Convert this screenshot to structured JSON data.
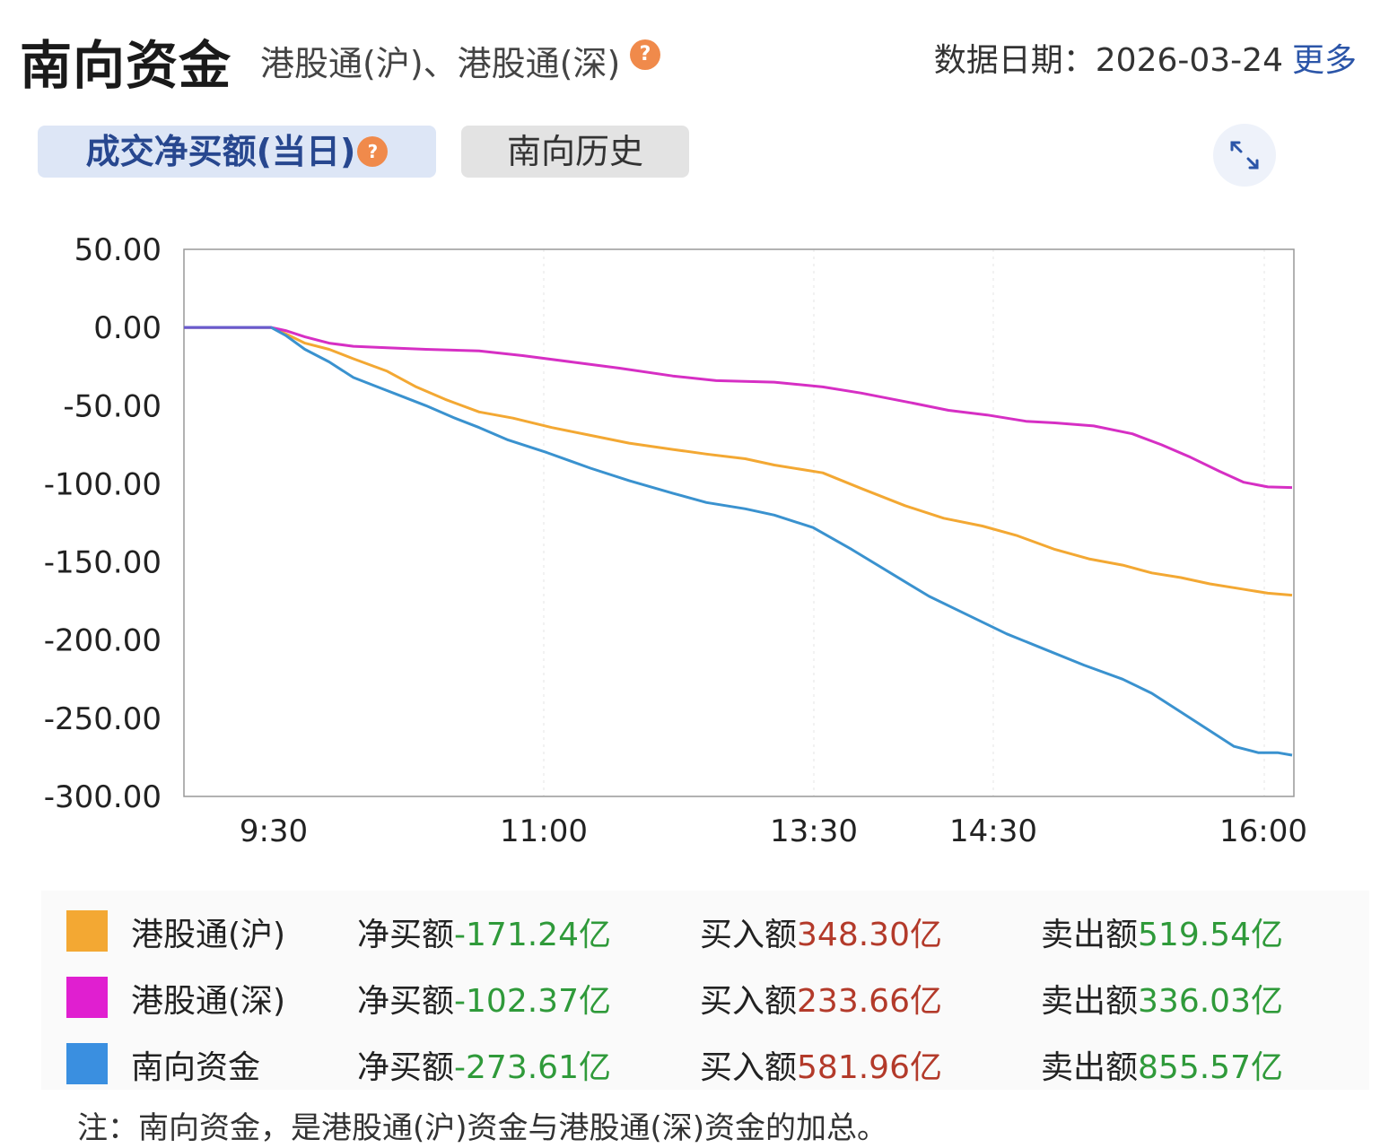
{
  "header": {
    "title": "南向资金",
    "subtitle": "港股通(沪)、港股通(深)",
    "help": "?",
    "date_label": "数据日期：2026-03-24",
    "more_label": "更多"
  },
  "tabs": [
    {
      "label": "成交净买额(当日)",
      "active": true
    },
    {
      "label": "南向历史",
      "active": false
    }
  ],
  "chart_data": {
    "type": "line",
    "ylim": [
      -300,
      50
    ],
    "yticks": [
      "50.00",
      "0.00",
      "-50.00",
      "-100.00",
      "-150.00",
      "-200.00",
      "-250.00",
      "-300.00"
    ],
    "xticks": [
      "9:30",
      "11:00",
      "13:30",
      "14:30",
      "16:00"
    ],
    "grid": true,
    "series": [
      {
        "name": "港股通(沪)",
        "color": "#f3a833",
        "points": [
          [
            0,
            0
          ],
          [
            0.5,
            0
          ],
          [
            0.9,
            0
          ],
          [
            1.05,
            -4
          ],
          [
            1.25,
            -10
          ],
          [
            1.5,
            -14
          ],
          [
            1.75,
            -20
          ],
          [
            2.1,
            -28
          ],
          [
            2.4,
            -38
          ],
          [
            2.7,
            -46
          ],
          [
            3.05,
            -54
          ],
          [
            3.4,
            -58
          ],
          [
            3.8,
            -64
          ],
          [
            4.2,
            -69
          ],
          [
            4.6,
            -74
          ],
          [
            5.05,
            -78
          ],
          [
            5.4,
            -81
          ],
          [
            5.8,
            -84
          ],
          [
            6.1,
            -88
          ],
          [
            6.6,
            -93
          ],
          [
            7.0,
            -103
          ],
          [
            7.45,
            -114
          ],
          [
            7.85,
            -122
          ],
          [
            8.25,
            -127
          ],
          [
            8.6,
            -133
          ],
          [
            9.0,
            -142
          ],
          [
            9.35,
            -148
          ],
          [
            9.7,
            -152
          ],
          [
            10.0,
            -157
          ],
          [
            10.3,
            -160
          ],
          [
            10.6,
            -164
          ],
          [
            10.9,
            -167
          ],
          [
            11.2,
            -170
          ],
          [
            11.45,
            -171.24
          ]
        ]
      },
      {
        "name": "港股通(深)",
        "color": "#d62fc4",
        "points": [
          [
            0,
            0
          ],
          [
            0.5,
            0
          ],
          [
            0.9,
            0
          ],
          [
            1.05,
            -2
          ],
          [
            1.25,
            -6
          ],
          [
            1.5,
            -10
          ],
          [
            1.75,
            -12
          ],
          [
            2.1,
            -13
          ],
          [
            2.5,
            -14
          ],
          [
            3.05,
            -15
          ],
          [
            3.5,
            -18
          ],
          [
            4.0,
            -22
          ],
          [
            4.5,
            -26
          ],
          [
            5.05,
            -31
          ],
          [
            5.5,
            -34
          ],
          [
            6.1,
            -35
          ],
          [
            6.6,
            -38
          ],
          [
            7.0,
            -42
          ],
          [
            7.5,
            -48
          ],
          [
            7.9,
            -53
          ],
          [
            8.3,
            -56
          ],
          [
            8.7,
            -60
          ],
          [
            9.0,
            -61
          ],
          [
            9.4,
            -63
          ],
          [
            9.8,
            -68
          ],
          [
            10.1,
            -75
          ],
          [
            10.4,
            -83
          ],
          [
            10.7,
            -92
          ],
          [
            10.95,
            -99
          ],
          [
            11.2,
            -102
          ],
          [
            11.45,
            -102.37
          ]
        ]
      },
      {
        "name": "南向资金",
        "color": "#3a92cf",
        "points": [
          [
            0,
            0
          ],
          [
            0.5,
            0
          ],
          [
            0.9,
            0
          ],
          [
            1.05,
            -5
          ],
          [
            1.25,
            -14
          ],
          [
            1.5,
            -22
          ],
          [
            1.75,
            -32
          ],
          [
            2.0,
            -38
          ],
          [
            2.25,
            -44
          ],
          [
            2.5,
            -50
          ],
          [
            2.8,
            -58
          ],
          [
            3.05,
            -64
          ],
          [
            3.35,
            -72
          ],
          [
            3.75,
            -80
          ],
          [
            4.2,
            -90
          ],
          [
            4.6,
            -98
          ],
          [
            5.05,
            -106
          ],
          [
            5.4,
            -112
          ],
          [
            5.8,
            -116
          ],
          [
            6.1,
            -120
          ],
          [
            6.5,
            -128
          ],
          [
            6.9,
            -142
          ],
          [
            7.3,
            -157
          ],
          [
            7.7,
            -172
          ],
          [
            8.1,
            -184
          ],
          [
            8.5,
            -196
          ],
          [
            8.9,
            -206
          ],
          [
            9.3,
            -216
          ],
          [
            9.7,
            -225
          ],
          [
            10.0,
            -234
          ],
          [
            10.3,
            -246
          ],
          [
            10.6,
            -258
          ],
          [
            10.85,
            -268
          ],
          [
            11.1,
            -272
          ],
          [
            11.3,
            -272
          ],
          [
            11.45,
            -273.61
          ]
        ]
      }
    ]
  },
  "legend": [
    {
      "name": "港股通(沪)",
      "color": "#f3a833",
      "net_label": "净买额",
      "net_value": "-171.24亿",
      "buy_label": "买入额",
      "buy_value": "348.30亿",
      "sell_label": "卖出额",
      "sell_value": "519.54亿"
    },
    {
      "name": "港股通(深)",
      "color": "#e01fd0",
      "net_label": "净买额",
      "net_value": "-102.37亿",
      "buy_label": "买入额",
      "buy_value": "233.66亿",
      "sell_label": "卖出额",
      "sell_value": "336.03亿"
    },
    {
      "name": "南向资金",
      "color": "#3a8fe0",
      "net_label": "净买额",
      "net_value": "-273.61亿",
      "buy_label": "买入额",
      "buy_value": "581.96亿",
      "sell_label": "卖出额",
      "sell_value": "855.57亿"
    }
  ],
  "note": "注：南向资金，是港股通(沪)资金与港股通(深)资金的加总。"
}
